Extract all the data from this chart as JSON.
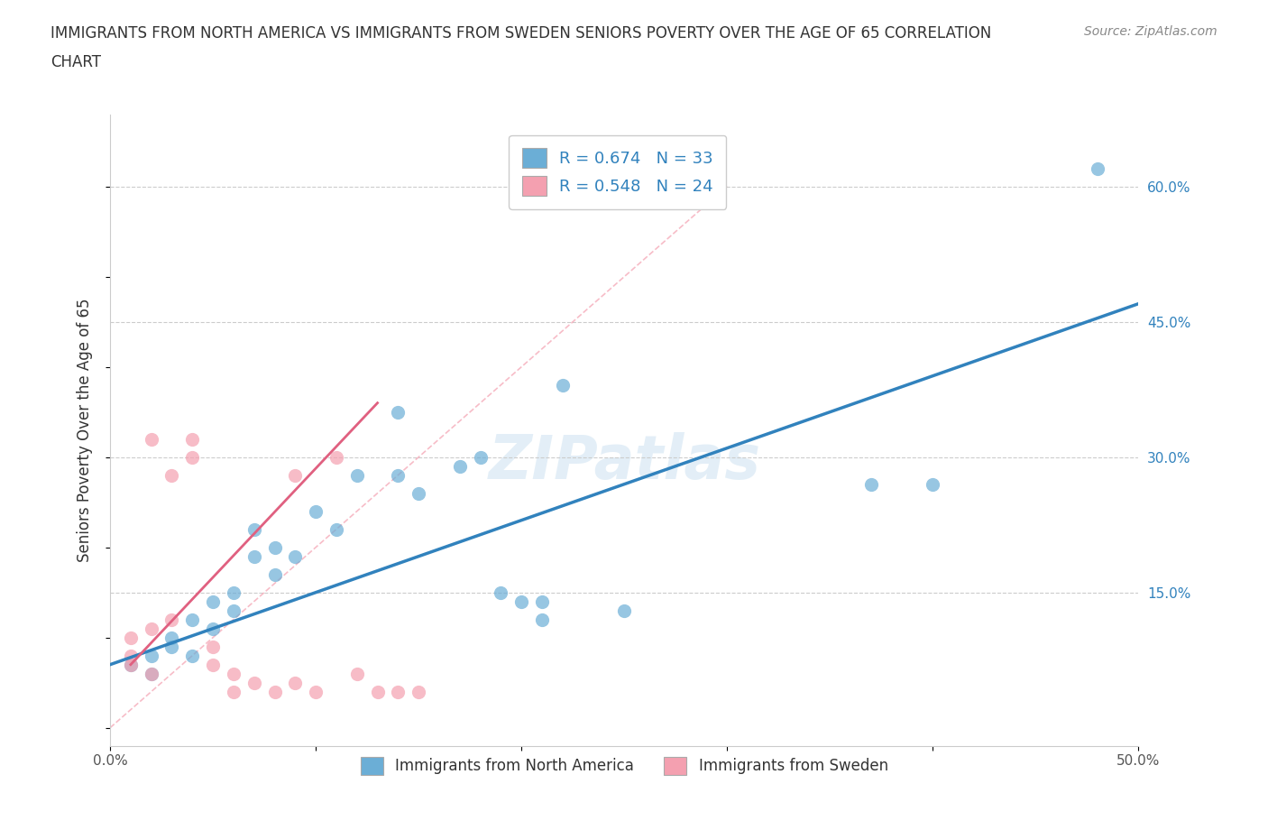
{
  "title_line1": "IMMIGRANTS FROM NORTH AMERICA VS IMMIGRANTS FROM SWEDEN SENIORS POVERTY OVER THE AGE OF 65 CORRELATION",
  "title_line2": "CHART",
  "source": "Source: ZipAtlas.com",
  "ylabel": "Seniors Poverty Over the Age of 65",
  "xlim": [
    0.0,
    0.5
  ],
  "ylim": [
    -0.02,
    0.68
  ],
  "xticks": [
    0.0,
    0.1,
    0.2,
    0.3,
    0.4,
    0.5
  ],
  "xticklabels": [
    "0.0%",
    "",
    "",
    "",
    "",
    "50.0%"
  ],
  "ytick_positions": [
    0.0,
    0.15,
    0.3,
    0.45,
    0.6
  ],
  "yticklabels": [
    "",
    "15.0%",
    "30.0%",
    "45.0%",
    "60.0%"
  ],
  "north_america_R": 0.674,
  "north_america_N": 33,
  "sweden_R": 0.548,
  "sweden_N": 24,
  "blue_color": "#6baed6",
  "pink_color": "#f4a0b0",
  "blue_line_color": "#3182bd",
  "pink_line_color": "#e06080",
  "watermark": "ZIPatlas",
  "blue_scatter": [
    [
      0.01,
      0.07
    ],
    [
      0.02,
      0.08
    ],
    [
      0.02,
      0.06
    ],
    [
      0.03,
      0.1
    ],
    [
      0.03,
      0.09
    ],
    [
      0.04,
      0.08
    ],
    [
      0.04,
      0.12
    ],
    [
      0.05,
      0.11
    ],
    [
      0.05,
      0.14
    ],
    [
      0.06,
      0.13
    ],
    [
      0.06,
      0.15
    ],
    [
      0.07,
      0.19
    ],
    [
      0.07,
      0.22
    ],
    [
      0.08,
      0.17
    ],
    [
      0.08,
      0.2
    ],
    [
      0.09,
      0.19
    ],
    [
      0.1,
      0.24
    ],
    [
      0.11,
      0.22
    ],
    [
      0.12,
      0.28
    ],
    [
      0.14,
      0.35
    ],
    [
      0.14,
      0.28
    ],
    [
      0.15,
      0.26
    ],
    [
      0.17,
      0.29
    ],
    [
      0.18,
      0.3
    ],
    [
      0.19,
      0.15
    ],
    [
      0.2,
      0.14
    ],
    [
      0.21,
      0.12
    ],
    [
      0.21,
      0.14
    ],
    [
      0.22,
      0.38
    ],
    [
      0.25,
      0.13
    ],
    [
      0.37,
      0.27
    ],
    [
      0.4,
      0.27
    ],
    [
      0.48,
      0.62
    ]
  ],
  "pink_scatter": [
    [
      0.01,
      0.07
    ],
    [
      0.01,
      0.1
    ],
    [
      0.01,
      0.08
    ],
    [
      0.02,
      0.06
    ],
    [
      0.02,
      0.11
    ],
    [
      0.02,
      0.32
    ],
    [
      0.03,
      0.12
    ],
    [
      0.03,
      0.28
    ],
    [
      0.04,
      0.3
    ],
    [
      0.04,
      0.32
    ],
    [
      0.05,
      0.07
    ],
    [
      0.05,
      0.09
    ],
    [
      0.06,
      0.04
    ],
    [
      0.06,
      0.06
    ],
    [
      0.07,
      0.05
    ],
    [
      0.08,
      0.04
    ],
    [
      0.09,
      0.28
    ],
    [
      0.09,
      0.05
    ],
    [
      0.1,
      0.04
    ],
    [
      0.11,
      0.3
    ],
    [
      0.12,
      0.06
    ],
    [
      0.13,
      0.04
    ],
    [
      0.14,
      0.04
    ],
    [
      0.15,
      0.04
    ]
  ],
  "blue_line": [
    [
      0.0,
      0.07
    ],
    [
      0.5,
      0.47
    ]
  ],
  "pink_line": [
    [
      0.01,
      0.07
    ],
    [
      0.13,
      0.36
    ]
  ],
  "pink_line_dashed": [
    [
      0.0,
      0.0
    ],
    [
      0.3,
      0.6
    ]
  ]
}
